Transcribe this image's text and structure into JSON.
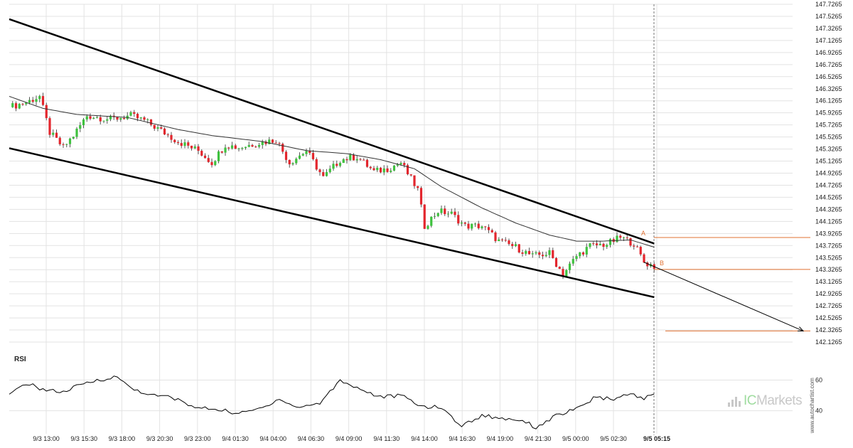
{
  "brand": {
    "logo_prefix": "IC",
    "logo_name": "Markets",
    "watermark": "www.autochartist.com"
  },
  "colors": {
    "bull": "#3ec23e",
    "bear": "#e3262d",
    "level": "#e07030",
    "trend": "#000000",
    "grid": "#e3e3e3",
    "ma": "#333333"
  },
  "rsi_label": "RSI",
  "chart_data": {
    "type": "candlestick",
    "price_axis": {
      "range": [
        142.1265,
        147.7265
      ],
      "ticks": [
        "147.7265",
        "147.5265",
        "147.3265",
        "147.1265",
        "146.9265",
        "146.7265",
        "146.5265",
        "146.3265",
        "146.1265",
        "145.9265",
        "145.7265",
        "145.5265",
        "145.3265",
        "145.1265",
        "144.9265",
        "144.7265",
        "144.5265",
        "144.3265",
        "144.1265",
        "143.9265",
        "143.7265",
        "143.5265",
        "143.3265",
        "143.1265",
        "142.9265",
        "142.7265",
        "142.5265",
        "142.3265",
        "142.1265"
      ]
    },
    "time_axis": {
      "labels": [
        "9/3 13:00",
        "9/3 15:30",
        "9/3 18:00",
        "9/3 20:30",
        "9/3 23:00",
        "9/4 01:30",
        "9/4 04:00",
        "9/4 06:30",
        "9/4 09:00",
        "9/4 11:30",
        "9/4 14:00",
        "9/4 16:30",
        "9/4 19:00",
        "9/4 21:30",
        "9/5 00:00",
        "9/5 02:30",
        "9/5 05:15"
      ],
      "highlighted": "9/5 05:15"
    },
    "close_path": [
      {
        "i": 0,
        "p": 146.02
      },
      {
        "i": 5,
        "p": 146.1
      },
      {
        "i": 9,
        "p": 146.2
      },
      {
        "i": 12,
        "p": 145.6
      },
      {
        "i": 16,
        "p": 145.35
      },
      {
        "i": 19,
        "p": 145.55
      },
      {
        "i": 23,
        "p": 145.88
      },
      {
        "i": 30,
        "p": 145.82
      },
      {
        "i": 36,
        "p": 145.88
      },
      {
        "i": 40,
        "p": 145.8
      },
      {
        "i": 45,
        "p": 145.63
      },
      {
        "i": 50,
        "p": 145.45
      },
      {
        "i": 56,
        "p": 145.3
      },
      {
        "i": 60,
        "p": 145.1
      },
      {
        "i": 64,
        "p": 145.4
      },
      {
        "i": 68,
        "p": 145.35
      },
      {
        "i": 73,
        "p": 145.42
      },
      {
        "i": 79,
        "p": 145.48
      },
      {
        "i": 83,
        "p": 145.1
      },
      {
        "i": 88,
        "p": 145.3
      },
      {
        "i": 93,
        "p": 144.85
      },
      {
        "i": 98,
        "p": 145.15
      },
      {
        "i": 103,
        "p": 145.2
      },
      {
        "i": 108,
        "p": 144.95
      },
      {
        "i": 112,
        "p": 145.0
      },
      {
        "i": 116,
        "p": 145.1
      },
      {
        "i": 121,
        "p": 144.65
      },
      {
        "i": 123,
        "p": 144.05
      },
      {
        "i": 127,
        "p": 144.3
      },
      {
        "i": 131,
        "p": 144.25
      },
      {
        "i": 135,
        "p": 144.05
      },
      {
        "i": 140,
        "p": 144.05
      },
      {
        "i": 145,
        "p": 143.8
      },
      {
        "i": 150,
        "p": 143.7
      },
      {
        "i": 155,
        "p": 143.55
      },
      {
        "i": 160,
        "p": 143.6
      },
      {
        "i": 164,
        "p": 143.25
      },
      {
        "i": 168,
        "p": 143.55
      },
      {
        "i": 172,
        "p": 143.72
      },
      {
        "i": 177,
        "p": 143.75
      },
      {
        "i": 181,
        "p": 143.86
      },
      {
        "i": 185,
        "p": 143.76
      },
      {
        "i": 188,
        "p": 143.45
      },
      {
        "i": 191,
        "p": 143.38
      }
    ],
    "moving_average_path": [
      {
        "i": 0,
        "p": 146.2
      },
      {
        "i": 10,
        "p": 146.0
      },
      {
        "i": 20,
        "p": 145.9
      },
      {
        "i": 35,
        "p": 145.85
      },
      {
        "i": 50,
        "p": 145.65
      },
      {
        "i": 60,
        "p": 145.55
      },
      {
        "i": 75,
        "p": 145.45
      },
      {
        "i": 88,
        "p": 145.3
      },
      {
        "i": 100,
        "p": 145.25
      },
      {
        "i": 110,
        "p": 145.15
      },
      {
        "i": 120,
        "p": 145.0
      },
      {
        "i": 128,
        "p": 144.7
      },
      {
        "i": 140,
        "p": 144.35
      },
      {
        "i": 150,
        "p": 144.1
      },
      {
        "i": 160,
        "p": 143.9
      },
      {
        "i": 168,
        "p": 143.8
      },
      {
        "i": 176,
        "p": 143.8
      },
      {
        "i": 184,
        "p": 143.82
      },
      {
        "i": 191,
        "p": 143.7
      }
    ],
    "channel": {
      "upper": {
        "from": {
          "i": 0,
          "p": 147.48
        },
        "to": {
          "i": 191,
          "p": 143.76
        }
      },
      "lower": {
        "from": {
          "i": 0,
          "p": 145.34
        },
        "to": {
          "i": 191,
          "p": 142.87
        }
      }
    },
    "levels": [
      {
        "label": "A",
        "p": 143.86
      },
      {
        "label": "B",
        "p": 143.33
      },
      {
        "label": "",
        "p": 142.31
      }
    ],
    "forecast": {
      "from": {
        "i": 188,
        "p": 143.45
      },
      "to_p": 142.31
    },
    "rsi": {
      "range": [
        25,
        70
      ],
      "ticks": [
        60,
        40
      ],
      "path": [
        {
          "i": 0,
          "p": 50
        },
        {
          "i": 5,
          "p": 58
        },
        {
          "i": 10,
          "p": 54
        },
        {
          "i": 16,
          "p": 52
        },
        {
          "i": 20,
          "p": 56
        },
        {
          "i": 26,
          "p": 60
        },
        {
          "i": 32,
          "p": 62
        },
        {
          "i": 36,
          "p": 55
        },
        {
          "i": 42,
          "p": 50
        },
        {
          "i": 48,
          "p": 49
        },
        {
          "i": 55,
          "p": 42
        },
        {
          "i": 62,
          "p": 41
        },
        {
          "i": 68,
          "p": 38
        },
        {
          "i": 75,
          "p": 42
        },
        {
          "i": 80,
          "p": 48
        },
        {
          "i": 85,
          "p": 42
        },
        {
          "i": 92,
          "p": 45
        },
        {
          "i": 98,
          "p": 60
        },
        {
          "i": 104,
          "p": 54
        },
        {
          "i": 110,
          "p": 49
        },
        {
          "i": 116,
          "p": 50
        },
        {
          "i": 122,
          "p": 43
        },
        {
          "i": 128,
          "p": 42
        },
        {
          "i": 134,
          "p": 30
        },
        {
          "i": 140,
          "p": 37
        },
        {
          "i": 146,
          "p": 35
        },
        {
          "i": 152,
          "p": 34
        },
        {
          "i": 156,
          "p": 29
        },
        {
          "i": 162,
          "p": 37
        },
        {
          "i": 168,
          "p": 41
        },
        {
          "i": 173,
          "p": 48
        },
        {
          "i": 180,
          "p": 48
        },
        {
          "i": 184,
          "p": 51
        },
        {
          "i": 188,
          "p": 48
        },
        {
          "i": 191,
          "p": 51
        }
      ]
    }
  }
}
